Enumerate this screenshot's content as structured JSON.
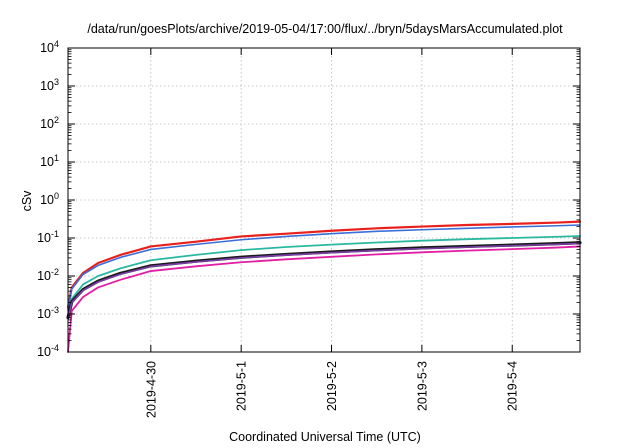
{
  "chart_data": {
    "type": "line",
    "title": "/data/run/goesPlots/archive/2019-05-04/17:00/flux/../bryn/5daysMarsAccumulated.plot",
    "xlabel": "Coordinated Universal Time (UTC)",
    "ylabel": "cSv",
    "y_scale": "log",
    "ylim": [
      0.0001,
      10000
    ],
    "xlim": [
      "2019-04-29 02:00",
      "2019-05-04 18:00"
    ],
    "grid": true,
    "x_ticks": [
      "2019-4-30",
      "2019-5-1",
      "2019-5-2",
      "2019-5-3",
      "2019-5-4"
    ],
    "y_ticks": [
      {
        "base": "10",
        "exp": "-4"
      },
      {
        "base": "10",
        "exp": "-3"
      },
      {
        "base": "10",
        "exp": "-2"
      },
      {
        "base": "10",
        "exp": "-1"
      },
      {
        "base": "10",
        "exp": "0"
      },
      {
        "base": "10",
        "exp": "1"
      },
      {
        "base": "10",
        "exp": "2"
      },
      {
        "base": "10",
        "exp": "3"
      },
      {
        "base": "10",
        "exp": "4"
      }
    ],
    "series": [
      {
        "color": "#e8211c",
        "width": 2.2,
        "x": [
          "2019-04-29 02:00",
          "2019-04-29 03:00",
          "2019-04-29 06:00",
          "2019-04-29 10:00",
          "2019-04-29 16:00",
          "2019-04-30 00:00",
          "2019-04-30 12:00",
          "2019-05-01 00:00",
          "2019-05-01 12:00",
          "2019-05-02 00:00",
          "2019-05-02 12:00",
          "2019-05-03 00:00",
          "2019-05-03 12:00",
          "2019-05-04 00:00",
          "2019-05-04 12:00",
          "2019-05-04 18:00"
        ],
        "y": [
          0.0015,
          0.005,
          0.012,
          0.022,
          0.036,
          0.06,
          0.08,
          0.11,
          0.13,
          0.155,
          0.18,
          0.2,
          0.22,
          0.235,
          0.255,
          0.27
        ]
      },
      {
        "color": "#3a6fd8",
        "width": 1.6,
        "x": [
          "2019-04-29 02:00",
          "2019-04-29 03:00",
          "2019-04-29 06:00",
          "2019-04-29 10:00",
          "2019-04-29 16:00",
          "2019-04-30 00:00",
          "2019-04-30 12:00",
          "2019-05-01 00:00",
          "2019-05-01 12:00",
          "2019-05-02 00:00",
          "2019-05-02 12:00",
          "2019-05-03 00:00",
          "2019-05-03 12:00",
          "2019-05-04 00:00",
          "2019-05-04 12:00",
          "2019-05-04 18:00"
        ],
        "y": [
          0.0013,
          0.0045,
          0.011,
          0.019,
          0.031,
          0.05,
          0.068,
          0.09,
          0.11,
          0.13,
          0.15,
          0.165,
          0.18,
          0.195,
          0.21,
          0.22
        ]
      },
      {
        "color": "#2ab9a0",
        "width": 1.8,
        "x": [
          "2019-04-29 02:00",
          "2019-04-29 03:00",
          "2019-04-29 06:00",
          "2019-04-29 10:00",
          "2019-04-29 16:00",
          "2019-04-30 00:00",
          "2019-04-30 12:00",
          "2019-05-01 00:00",
          "2019-05-01 12:00",
          "2019-05-02 00:00",
          "2019-05-02 12:00",
          "2019-05-03 00:00",
          "2019-05-03 12:00",
          "2019-05-04 00:00",
          "2019-05-04 12:00",
          "2019-05-04 18:00"
        ],
        "y": [
          0.0009,
          0.0025,
          0.006,
          0.01,
          0.016,
          0.026,
          0.036,
          0.048,
          0.058,
          0.067,
          0.076,
          0.085,
          0.093,
          0.1,
          0.108,
          0.113
        ]
      },
      {
        "color": "#e8a51e",
        "width": 1.2,
        "x": [
          "2019-04-29 02:00",
          "2019-04-29 03:00",
          "2019-04-29 06:00",
          "2019-04-29 10:00",
          "2019-04-29 16:00",
          "2019-04-30 00:00",
          "2019-04-30 12:00",
          "2019-05-01 00:00",
          "2019-05-01 12:00",
          "2019-05-02 00:00",
          "2019-05-02 12:00",
          "2019-05-03 00:00",
          "2019-05-03 12:00",
          "2019-05-04 00:00",
          "2019-05-04 12:00",
          "2019-05-04 18:00"
        ],
        "y": [
          0.0008,
          0.0022,
          0.0045,
          0.0075,
          0.012,
          0.019,
          0.025,
          0.032,
          0.038,
          0.044,
          0.05,
          0.056,
          0.061,
          0.066,
          0.072,
          0.076
        ]
      },
      {
        "color": "#1a1a1a",
        "width": 3.2,
        "x": [
          "2019-04-29 02:00",
          "2019-04-29 03:00",
          "2019-04-29 06:00",
          "2019-04-29 10:00",
          "2019-04-29 16:00",
          "2019-04-30 00:00",
          "2019-04-30 12:00",
          "2019-05-01 00:00",
          "2019-05-01 12:00",
          "2019-05-02 00:00",
          "2019-05-02 12:00",
          "2019-05-03 00:00",
          "2019-05-03 12:00",
          "2019-05-04 00:00",
          "2019-05-04 12:00",
          "2019-05-04 18:00"
        ],
        "y": [
          0.0008,
          0.0021,
          0.0044,
          0.0073,
          0.0118,
          0.0185,
          0.0245,
          0.0312,
          0.037,
          0.043,
          0.049,
          0.055,
          0.06,
          0.065,
          0.071,
          0.075
        ]
      },
      {
        "color": "#7b3fa8",
        "width": 1.6,
        "x": [
          "2019-04-29 02:00",
          "2019-04-29 03:00",
          "2019-04-29 06:00",
          "2019-04-29 10:00",
          "2019-04-29 16:00",
          "2019-04-30 00:00",
          "2019-04-30 12:00",
          "2019-05-01 00:00",
          "2019-05-01 12:00",
          "2019-05-02 00:00",
          "2019-05-02 12:00",
          "2019-05-03 00:00",
          "2019-05-03 12:00",
          "2019-05-04 00:00",
          "2019-05-04 12:00",
          "2019-05-04 18:00"
        ],
        "y": [
          0.00078,
          0.002,
          0.0042,
          0.007,
          0.0112,
          0.0178,
          0.0235,
          0.03,
          0.0355,
          0.041,
          0.047,
          0.0525,
          0.0575,
          0.0625,
          0.068,
          0.072
        ]
      },
      {
        "color": "#e01fa5",
        "width": 1.8,
        "x": [
          "2019-04-29 02:00",
          "2019-04-29 03:00",
          "2019-04-29 06:00",
          "2019-04-29 10:00",
          "2019-04-29 16:00",
          "2019-04-30 00:00",
          "2019-04-30 12:00",
          "2019-05-01 00:00",
          "2019-05-01 12:00",
          "2019-05-02 00:00",
          "2019-05-02 12:00",
          "2019-05-03 00:00",
          "2019-05-03 12:00",
          "2019-05-04 00:00",
          "2019-05-04 12:00",
          "2019-05-04 18:00"
        ],
        "y": [
          0.0001,
          0.0012,
          0.0028,
          0.005,
          0.008,
          0.0135,
          0.018,
          0.023,
          0.0275,
          0.032,
          0.037,
          0.042,
          0.0465,
          0.051,
          0.056,
          0.06
        ]
      }
    ]
  }
}
